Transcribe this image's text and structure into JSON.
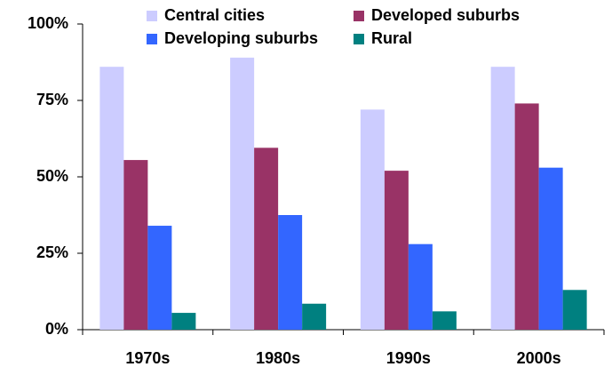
{
  "chart_data": {
    "type": "bar",
    "categories": [
      "1970s",
      "1980s",
      "1990s",
      "2000s"
    ],
    "series": [
      {
        "name": "Central cities",
        "color": "#ccccff",
        "values": [
          86,
          89,
          72,
          86
        ]
      },
      {
        "name": "Developed suburbs",
        "color": "#993366",
        "values": [
          55.5,
          59.5,
          52,
          74
        ]
      },
      {
        "name": "Developing suburbs",
        "color": "#3366ff",
        "values": [
          34,
          37.5,
          28,
          53
        ]
      },
      {
        "name": "Rural",
        "color": "#008080",
        "values": [
          5.5,
          8.5,
          6,
          13
        ]
      }
    ],
    "ylim": [
      0,
      100
    ],
    "yticks": [
      {
        "value": 0,
        "label": "0%"
      },
      {
        "value": 25,
        "label": "25%"
      },
      {
        "value": 50,
        "label": "50%"
      },
      {
        "value": 75,
        "label": "75%"
      },
      {
        "value": 100,
        "label": "100%"
      }
    ],
    "legend": "top"
  }
}
